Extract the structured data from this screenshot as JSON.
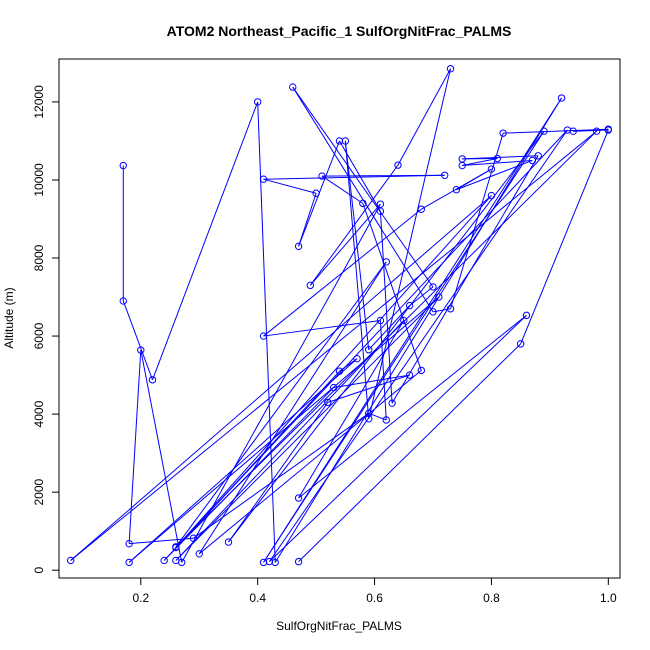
{
  "chart_data": {
    "type": "line",
    "title": "ATOM2 Northeast_Pacific_1 SulfOrgNitFrac_PALMS",
    "xlabel": "SulfOrgNitFrac_PALMS",
    "ylabel": "Altitude (m)",
    "xlim": [
      0.06,
      1.02
    ],
    "ylim": [
      -200,
      13100
    ],
    "x_ticks": [
      0.2,
      0.4,
      0.6,
      0.8,
      1.0
    ],
    "x_tick_labels": [
      "0.2",
      "0.4",
      "0.6",
      "0.8",
      "1.0"
    ],
    "y_ticks": [
      0,
      2000,
      4000,
      6000,
      8000,
      10000,
      12000
    ],
    "y_tick_labels": [
      "0",
      "2000",
      "4000",
      "6000",
      "8000",
      "10000",
      "12000"
    ],
    "grid": false,
    "legend": "none",
    "series_color": "#0000ff",
    "marker": "open-circle",
    "points": [
      [
        0.17,
        10370
      ],
      [
        0.17,
        6900
      ],
      [
        0.22,
        4880
      ],
      [
        0.4,
        12000
      ],
      [
        0.43,
        200
      ],
      [
        0.92,
        12100
      ],
      [
        0.41,
        200
      ],
      [
        0.89,
        11250
      ],
      [
        0.35,
        720
      ],
      [
        0.52,
        4300
      ],
      [
        0.66,
        5000
      ],
      [
        0.53,
        4680
      ],
      [
        0.24,
        250
      ],
      [
        0.54,
        5100
      ],
      [
        0.57,
        5420
      ],
      [
        0.18,
        200
      ],
      [
        0.71,
        7000
      ],
      [
        0.26,
        250
      ],
      [
        0.65,
        6400
      ],
      [
        0.47,
        1850
      ],
      [
        0.86,
        6530
      ],
      [
        0.42,
        220
      ],
      [
        0.93,
        11280
      ],
      [
        0.26,
        580
      ],
      [
        0.8,
        9600
      ],
      [
        0.08,
        250
      ],
      [
        0.98,
        11250
      ],
      [
        0.26,
        600
      ],
      [
        0.62,
        7900
      ],
      [
        0.3,
        420
      ],
      [
        0.68,
        5120
      ],
      [
        0.58,
        9400
      ],
      [
        0.51,
        10100
      ],
      [
        0.72,
        10120
      ],
      [
        0.41,
        10020
      ],
      [
        0.5,
        9660
      ],
      [
        0.47,
        8300
      ],
      [
        0.54,
        11000
      ],
      [
        0.61,
        9200
      ],
      [
        0.63,
        4280
      ],
      [
        0.88,
        10620
      ],
      [
        0.75,
        10540
      ],
      [
        0.81,
        10550
      ],
      [
        0.75,
        10370
      ],
      [
        0.87,
        10500
      ],
      [
        0.74,
        9750
      ],
      [
        0.8,
        10280
      ],
      [
        0.68,
        9250
      ],
      [
        0.41,
        6000
      ],
      [
        0.61,
        6400
      ],
      [
        0.62,
        3850
      ],
      [
        0.59,
        4020
      ],
      [
        0.29,
        820
      ],
      [
        0.18,
        680
      ],
      [
        0.2,
        5640
      ],
      [
        0.27,
        200
      ],
      [
        0.61,
        9380
      ],
      [
        0.49,
        7300
      ],
      [
        0.64,
        10380
      ],
      [
        0.73,
        12850
      ],
      [
        0.59,
        3880
      ],
      [
        0.55,
        11000
      ],
      [
        0.59,
        5650
      ],
      [
        0.66,
        6780
      ],
      [
        0.7,
        7260
      ],
      [
        0.46,
        12380
      ],
      [
        0.7,
        6620
      ],
      [
        0.73,
        6700
      ],
      [
        0.82,
        11200
      ],
      [
        1.0,
        11300
      ],
      [
        0.94,
        11250
      ],
      [
        1.0,
        11280
      ],
      [
        0.85,
        5800
      ],
      [
        0.47,
        220
      ]
    ]
  }
}
